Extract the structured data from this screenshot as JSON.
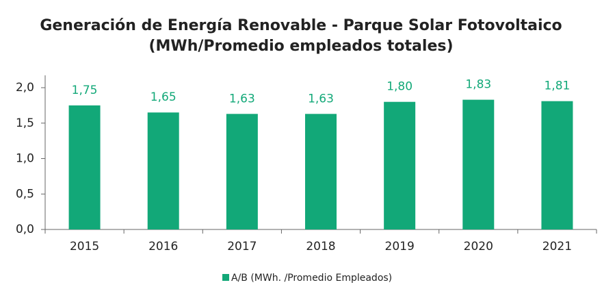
{
  "chart_data": {
    "type": "bar",
    "title": "Generación de Energía Renovable - Parque Solar Fotovoltaico",
    "subtitle": "(MWh/Promedio empleados totales)",
    "categories": [
      "2015",
      "2016",
      "2017",
      "2018",
      "2019",
      "2020",
      "2021"
    ],
    "series": [
      {
        "name": "A/B (MWh. /Promedio Empleados)",
        "color": "#12a878",
        "values": [
          1.75,
          1.65,
          1.63,
          1.63,
          1.8,
          1.83,
          1.81
        ],
        "value_labels": [
          "1,75",
          "1,65",
          "1,63",
          "1,63",
          "1,80",
          "1,83",
          "1,81"
        ]
      }
    ],
    "ylim": [
      0,
      2
    ],
    "yticks": [
      {
        "value": 0,
        "label": "0,0"
      },
      {
        "value": 0.5,
        "label": "0,5"
      },
      {
        "value": 1,
        "label": "1,0"
      },
      {
        "value": 1.5,
        "label": "1,5"
      },
      {
        "value": 2,
        "label": "2,0"
      }
    ],
    "grid": false
  }
}
